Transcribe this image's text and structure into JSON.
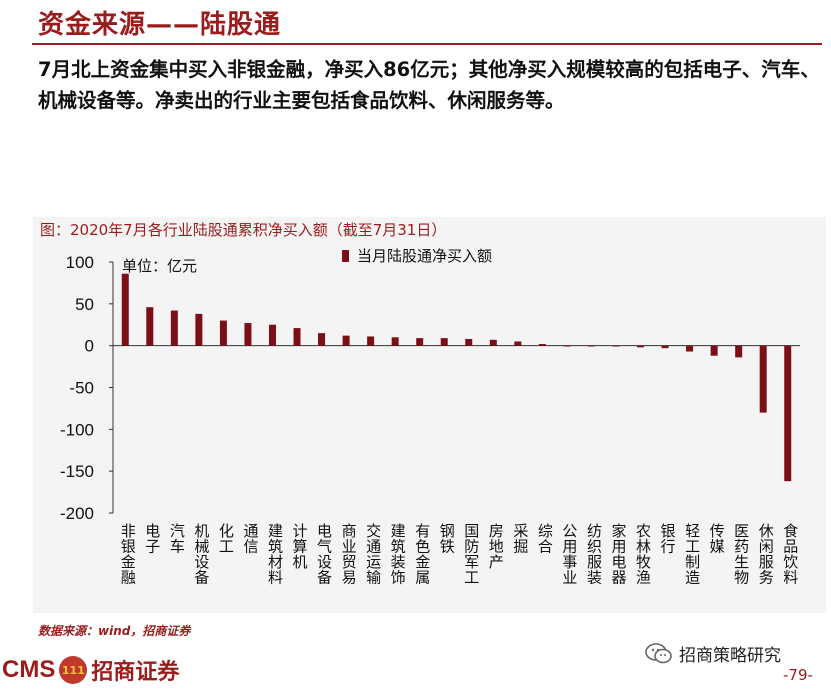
{
  "header": {
    "title": "资金来源——陆股通",
    "summary": "7月北上资金集中买入非银金融，净买入86亿元；其他净买入规模较高的包括电子、汽车、机械设备等。净卖出的行业主要包括食品饮料、休闲服务等。"
  },
  "chart_caption": "图：2020年7月各行业陆股通累积净买入额（截至7月31日）",
  "chart_data": {
    "type": "bar",
    "unit_label": "单位：亿元",
    "legend": "当月陆股通净买入额",
    "legend_position": "top",
    "bar_color": "#7b0f16",
    "ylim": [
      -200,
      100
    ],
    "yticks": [
      100,
      50,
      0,
      -50,
      -100,
      -150,
      -200
    ],
    "grid": false,
    "categories": [
      "非银金融",
      "电子",
      "汽车",
      "机械设备",
      "化工",
      "通信",
      "建筑材料",
      "计算机",
      "电气设备",
      "商业贸易",
      "交通运输",
      "建筑装饰",
      "有色金属",
      "钢铁",
      "国防军工",
      "房地产",
      "采掘",
      "综合",
      "公用事业",
      "纺织服装",
      "家用电器",
      "农林牧渔",
      "银行",
      "轻工制造",
      "传媒",
      "医药生物",
      "休闲服务",
      "食品饮料"
    ],
    "values": [
      86,
      46,
      42,
      38,
      30,
      27,
      25,
      21,
      15,
      12,
      11,
      10,
      9,
      9,
      8,
      7,
      5,
      2,
      -1,
      -1,
      -1,
      -2,
      -3,
      -7,
      -12,
      -14,
      -80,
      -162
    ]
  },
  "footer": {
    "source": "数据来源：wind，招商证券",
    "brand_cms": "CMS",
    "brand_logo": "111",
    "brand_name": "招商证券",
    "wechat_label": "招商策略研究",
    "page_number": "-79-"
  },
  "colors": {
    "accent": "#9b1c1c",
    "bar": "#7b0f16",
    "chart_bg": "#f4f4f4"
  }
}
